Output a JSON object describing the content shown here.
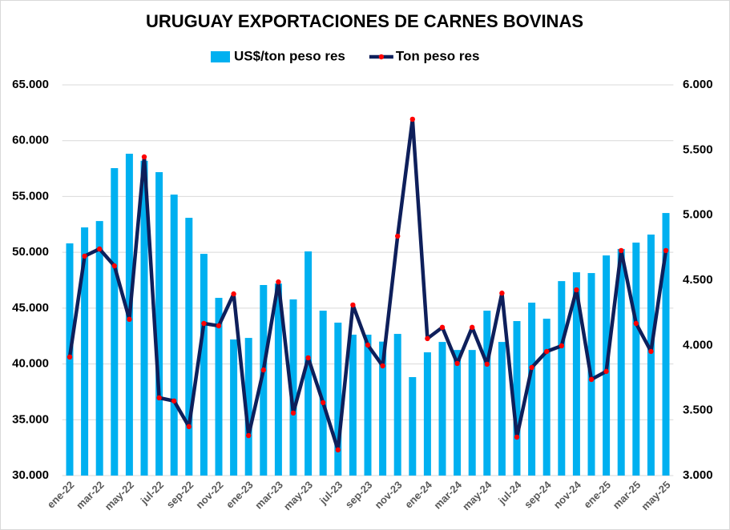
{
  "chart_data": {
    "type": "bar",
    "title": "URUGUAY EXPORTACIONES DE CARNES BOVINAS",
    "categories": [
      "ene-22",
      null,
      "mar-22",
      null,
      "may-22",
      null,
      "jul-22",
      null,
      "sep-22",
      null,
      "nov-22",
      null,
      "ene-23",
      null,
      "mar-23",
      null,
      "may-23",
      null,
      "jul-23",
      null,
      "sep-23",
      null,
      "nov-23",
      null,
      "ene-24",
      null,
      "mar-24",
      null,
      "may-24",
      null,
      "jul-24",
      null,
      "sep-24",
      null,
      "nov-24",
      null,
      "ene-25",
      null,
      "mar-25",
      null,
      "may-25"
    ],
    "series": [
      {
        "name": "US$/ton peso res",
        "type": "bar",
        "color": "#00b0f0",
        "values": [
          50800,
          52230,
          52800,
          57540,
          58830,
          58200,
          57180,
          55170,
          53090,
          49860,
          45920,
          42190,
          42330,
          47070,
          47200,
          45780,
          50080,
          44770,
          43700,
          42620,
          42620,
          42000,
          42690,
          38820,
          41040,
          41970,
          41250,
          41250,
          44770,
          41970,
          43840,
          45490,
          44050,
          47420,
          48210,
          48140,
          49720,
          50300,
          50870,
          51590,
          53520
        ]
      },
      {
        "name": "Ton peso res",
        "type": "line",
        "axis": "y2",
        "color": "#0e1f5b",
        "marker_color": "#ff0000",
        "values": [
          3910,
          4685,
          4740,
          4610,
          4200,
          5447,
          3597,
          3573,
          3376,
          4168,
          4150,
          4395,
          3307,
          3811,
          4487,
          3480,
          3904,
          3560,
          3197,
          4310,
          4002,
          3842,
          4838,
          5736,
          4052,
          4138,
          3861,
          4138,
          3855,
          4401,
          3295,
          3830,
          3953,
          3996,
          4426,
          3738,
          3800,
          4728,
          4168,
          3953,
          4728
        ]
      }
    ],
    "ylim": [
      30000,
      65000
    ],
    "yticks": [
      {
        "value": 30000,
        "label": "30.000"
      },
      {
        "value": 35000,
        "label": "35.000"
      },
      {
        "value": 40000,
        "label": "40.000"
      },
      {
        "value": 45000,
        "label": "45.000"
      },
      {
        "value": 50000,
        "label": "50.000"
      },
      {
        "value": 55000,
        "label": "55.000"
      },
      {
        "value": 60000,
        "label": "60.000"
      },
      {
        "value": 65000,
        "label": "65.000"
      }
    ],
    "y2lim": [
      3000,
      6000
    ],
    "y2ticks": [
      {
        "value": 3000,
        "label": "3.000"
      },
      {
        "value": 3500,
        "label": "3.500"
      },
      {
        "value": 4000,
        "label": "4.000"
      },
      {
        "value": 4500,
        "label": "4.500"
      },
      {
        "value": 5000,
        "label": "5.000"
      },
      {
        "value": 5500,
        "label": "5.500"
      },
      {
        "value": 6000,
        "label": "6.000"
      }
    ],
    "grid": true,
    "legend": "top"
  }
}
